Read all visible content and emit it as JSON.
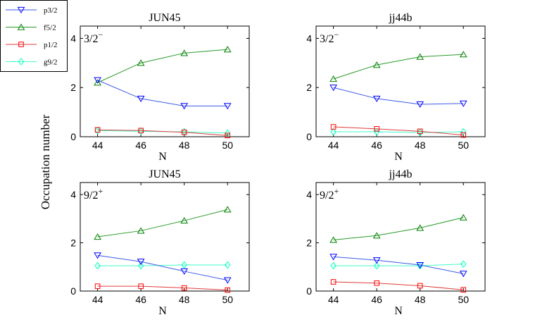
{
  "figure": {
    "shared_ylabel": "Occupation number",
    "legend": [
      {
        "key": "p3/2",
        "label": "p3/2",
        "color": "#0000ff",
        "marker": "triangle-down"
      },
      {
        "key": "f5/2",
        "label": "f5/2",
        "color": "#008000",
        "marker": "triangle-up"
      },
      {
        "key": "p1/2",
        "label": "p1/2",
        "color": "#ff0000",
        "marker": "square"
      },
      {
        "key": "g9/2",
        "label": "g9/2",
        "color": "#00ffbf",
        "marker": "diamond"
      }
    ],
    "line_colors": {
      "p3/2": "#3c5ae6",
      "f5/2": "#2a9b2a",
      "p1/2": "#e03c3c",
      "g9/2": "#40ffc8"
    }
  },
  "chart_data": [
    {
      "type": "line",
      "title": "JUN45",
      "state_label": "3/2",
      "state_parity": "−",
      "xlabel": "N",
      "ylabel": "",
      "x": [
        44,
        46,
        48,
        50
      ],
      "xlim": [
        43.2,
        51
      ],
      "ylim": [
        0,
        4.5
      ],
      "yticks": [
        0,
        2,
        4
      ],
      "series": [
        {
          "name": "p3/2",
          "values": [
            2.3,
            1.55,
            1.25,
            1.25
          ]
        },
        {
          "name": "f5/2",
          "values": [
            2.2,
            3.0,
            3.4,
            3.55
          ]
        },
        {
          "name": "p1/2",
          "values": [
            0.28,
            0.25,
            0.18,
            0.05
          ]
        },
        {
          "name": "g9/2",
          "values": [
            0.25,
            0.22,
            0.2,
            0.15
          ]
        }
      ]
    },
    {
      "type": "line",
      "title": "jj44b",
      "state_label": "3/2",
      "state_parity": "−",
      "xlabel": "N",
      "ylabel": "",
      "x": [
        44,
        46,
        48,
        50
      ],
      "xlim": [
        43.2,
        51
      ],
      "ylim": [
        0,
        4.5
      ],
      "yticks": [
        0,
        2,
        4
      ],
      "series": [
        {
          "name": "p3/2",
          "values": [
            2.0,
            1.55,
            1.32,
            1.35
          ]
        },
        {
          "name": "f5/2",
          "values": [
            2.35,
            2.92,
            3.25,
            3.35
          ]
        },
        {
          "name": "p1/2",
          "values": [
            0.4,
            0.32,
            0.22,
            0.07
          ]
        },
        {
          "name": "g9/2",
          "values": [
            0.2,
            0.2,
            0.17,
            0.2
          ]
        }
      ]
    },
    {
      "type": "line",
      "title": "JUN45",
      "state_label": "9/2",
      "state_parity": "+",
      "xlabel": "N",
      "ylabel": "",
      "x": [
        44,
        46,
        48,
        50
      ],
      "xlim": [
        43.2,
        51
      ],
      "ylim": [
        0,
        4.5
      ],
      "yticks": [
        0,
        2,
        4
      ],
      "series": [
        {
          "name": "p3/2",
          "values": [
            1.48,
            1.22,
            0.82,
            0.45
          ]
        },
        {
          "name": "f5/2",
          "values": [
            2.25,
            2.5,
            2.92,
            3.38
          ]
        },
        {
          "name": "p1/2",
          "values": [
            0.2,
            0.2,
            0.13,
            0.04
          ]
        },
        {
          "name": "g9/2",
          "values": [
            1.05,
            1.05,
            1.08,
            1.08
          ]
        }
      ]
    },
    {
      "type": "line",
      "title": "jj44b",
      "state_label": "9/2",
      "state_parity": "+",
      "xlabel": "N",
      "ylabel": "",
      "x": [
        44,
        46,
        48,
        50
      ],
      "xlim": [
        43.2,
        51
      ],
      "ylim": [
        0,
        4.5
      ],
      "yticks": [
        0,
        2,
        4
      ],
      "series": [
        {
          "name": "p3/2",
          "values": [
            1.42,
            1.28,
            1.08,
            0.72
          ]
        },
        {
          "name": "f5/2",
          "values": [
            2.12,
            2.3,
            2.62,
            3.05
          ]
        },
        {
          "name": "p1/2",
          "values": [
            0.38,
            0.33,
            0.22,
            0.05
          ]
        },
        {
          "name": "g9/2",
          "values": [
            1.05,
            1.05,
            1.05,
            1.12
          ]
        }
      ]
    }
  ]
}
